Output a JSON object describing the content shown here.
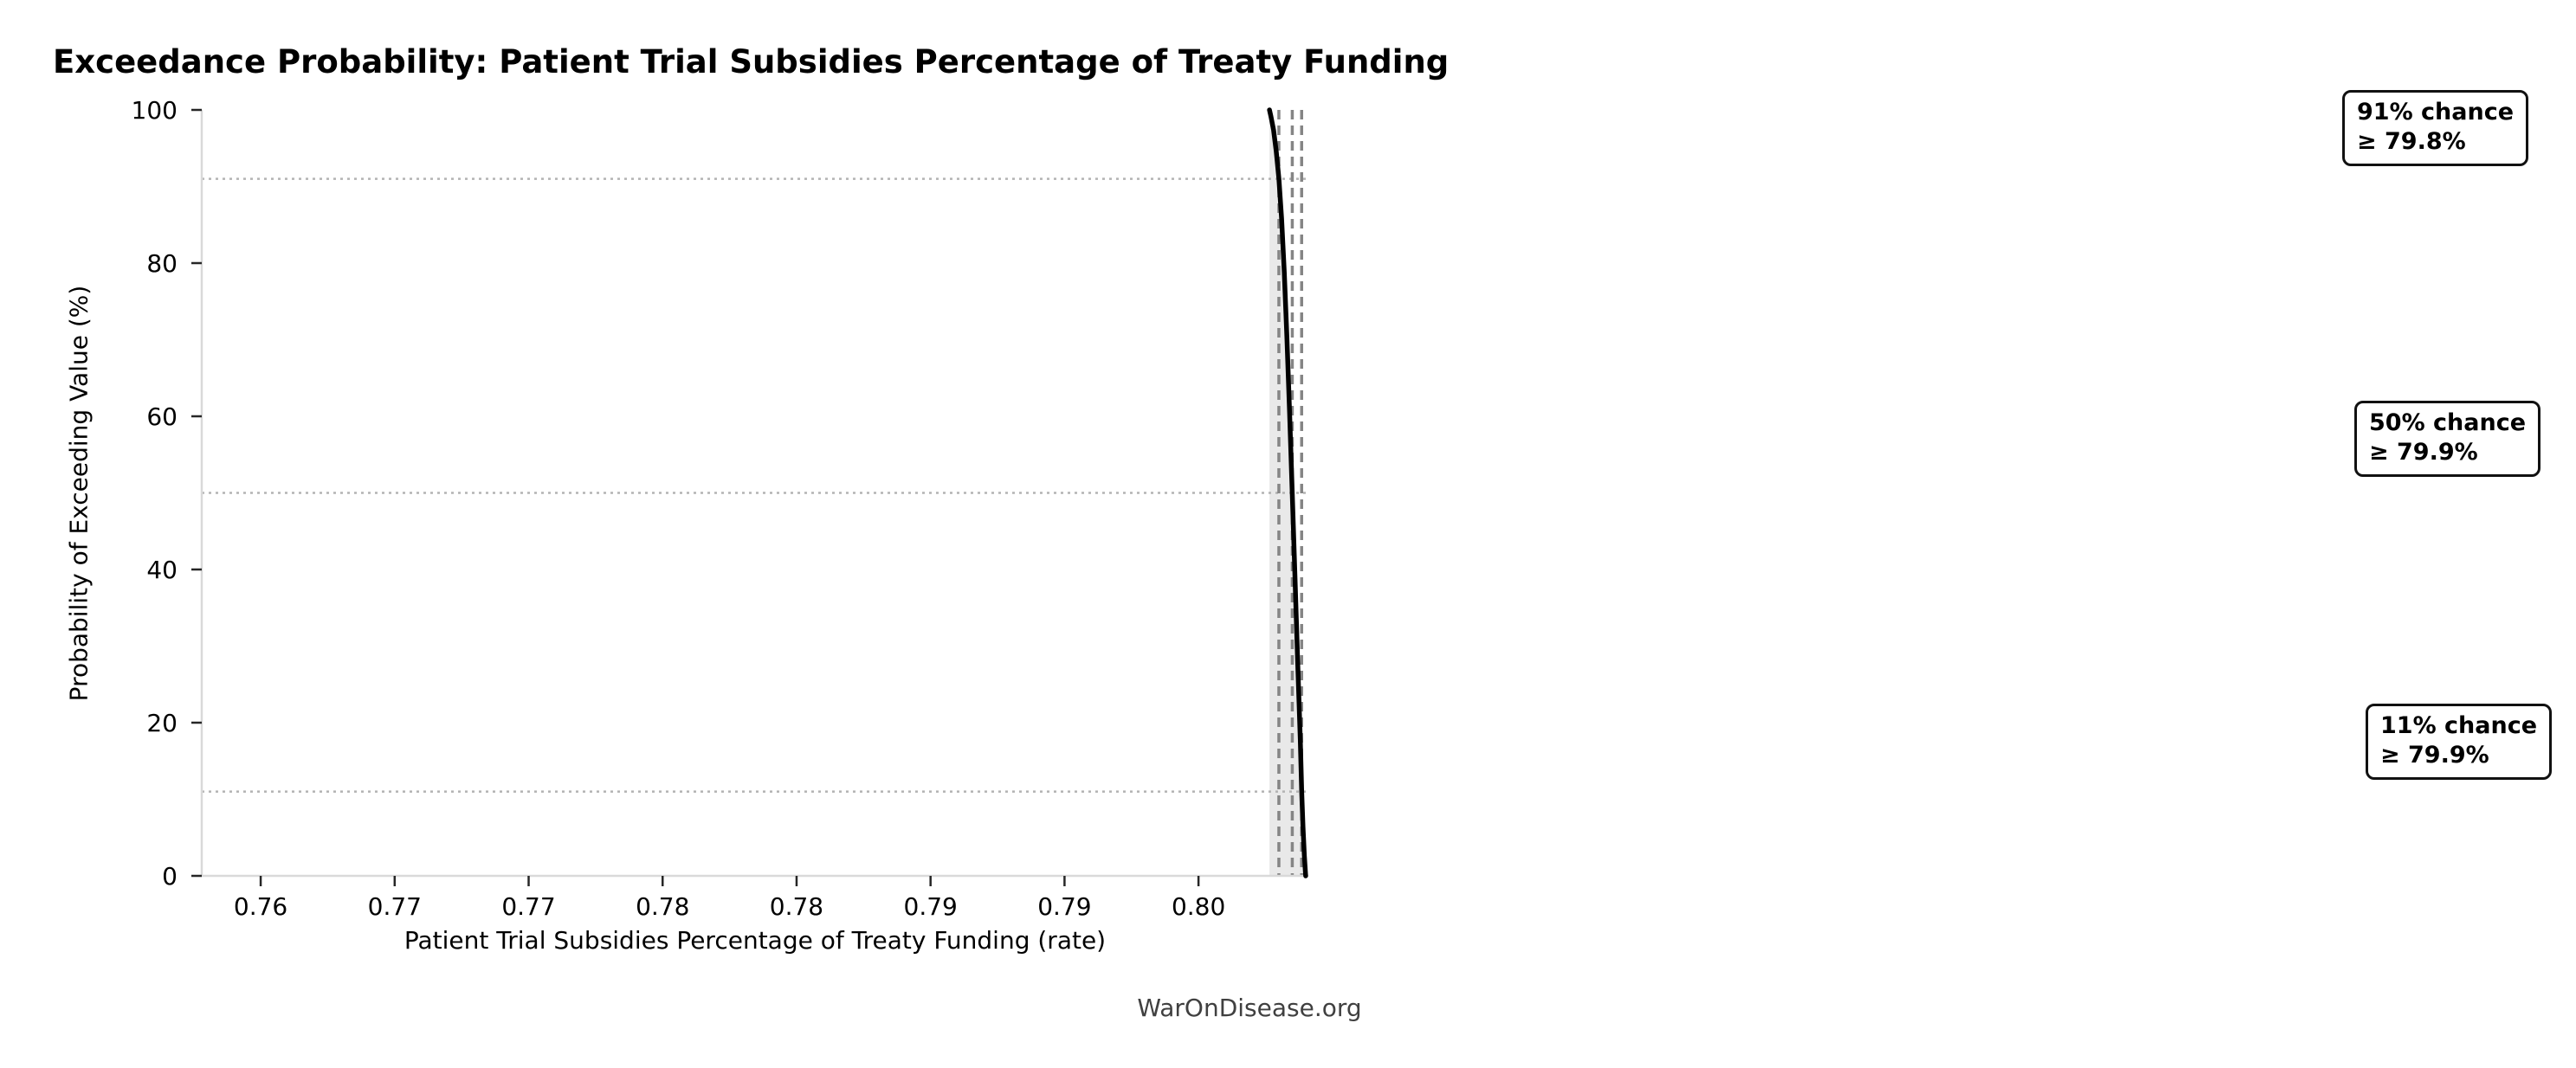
{
  "page": {
    "background": "#ffffff",
    "watermark": "WarOnDisease.org"
  },
  "chart_data": {
    "type": "line",
    "title": "Exceedance Probability: Patient Trial Subsidies Percentage of Treaty Funding",
    "xlabel": "Patient Trial Subsidies Percentage of Treaty Funding (rate)",
    "ylabel": "Probability of Exceeding Value (%)",
    "xlim": [
      0.7578,
      0.7991
    ],
    "ylim": [
      0,
      100
    ],
    "grid": "dotted horizontal reference lines at 91/50/11, dashed vertical reference lines at thresholds",
    "legend": null,
    "x_ticks": [
      {
        "value": 0.76,
        "label": "0.76"
      },
      {
        "value": 0.765,
        "label": "0.77"
      },
      {
        "value": 0.77,
        "label": "0.77"
      },
      {
        "value": 0.775,
        "label": "0.78"
      },
      {
        "value": 0.78,
        "label": "0.78"
      },
      {
        "value": 0.785,
        "label": "0.79"
      },
      {
        "value": 0.79,
        "label": "0.79"
      },
      {
        "value": 0.795,
        "label": "0.80"
      }
    ],
    "y_ticks": [
      {
        "value": 0,
        "label": "0"
      },
      {
        "value": 20,
        "label": "20"
      },
      {
        "value": 40,
        "label": "40"
      },
      {
        "value": 60,
        "label": "60"
      },
      {
        "value": 80,
        "label": "80"
      },
      {
        "value": 100,
        "label": "100"
      }
    ],
    "series": [
      {
        "name": "exceedance_curve",
        "color": "#000000",
        "line_width": 5.5,
        "points": [
          [
            0.79765,
            100
          ],
          [
            0.7977,
            99.2
          ],
          [
            0.7978,
            97.4
          ],
          [
            0.7979,
            94.6
          ],
          [
            0.798,
            91
          ],
          [
            0.7981,
            85.8
          ],
          [
            0.7982,
            78.8
          ],
          [
            0.7983,
            70.4
          ],
          [
            0.7984,
            60.6
          ],
          [
            0.7985,
            50
          ],
          [
            0.7986,
            39.2
          ],
          [
            0.7987,
            28.2
          ],
          [
            0.7988,
            17.8
          ],
          [
            0.79885,
            11
          ],
          [
            0.7989,
            6.4
          ],
          [
            0.79895,
            2.6
          ],
          [
            0.799,
            0
          ]
        ]
      }
    ],
    "area_fill": {
      "under_series": "exceedance_curve",
      "color": "#e9e9e9"
    },
    "reference_lines": {
      "horizontal_dotted": {
        "color": "#b3b3b3",
        "probabilities": [
          91,
          50,
          11
        ]
      },
      "vertical_dashed": {
        "color": "#858585",
        "x_values": [
          0.798,
          0.7985,
          0.79885
        ]
      }
    },
    "annotations": [
      {
        "line1": "91% chance",
        "line2": "≥ 79.8%",
        "chance_pct": 91,
        "threshold_rate": 0.798
      },
      {
        "line1": "50% chance",
        "line2": "≥ 79.9%",
        "chance_pct": 50,
        "threshold_rate": 0.7985
      },
      {
        "line1": "11% chance",
        "line2": "≥ 79.9%",
        "chance_pct": 11,
        "threshold_rate": 0.79885
      }
    ],
    "style": {
      "spine_color": "#d9d9d9",
      "tick_color": "#262626",
      "tick_label_color": "#000000"
    }
  }
}
